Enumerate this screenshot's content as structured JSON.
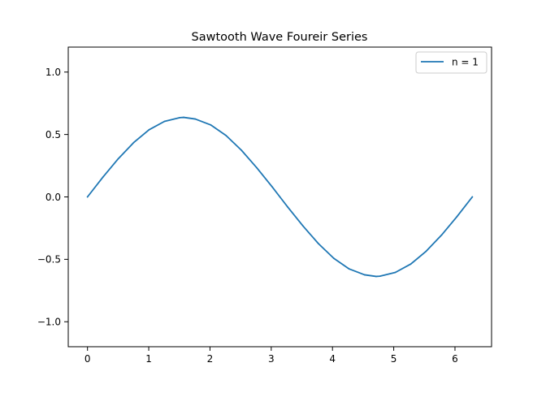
{
  "chart_data": {
    "type": "line",
    "title": "Sawtooth Wave Foureir Series",
    "xlabel": "",
    "ylabel": "",
    "xlim": [
      -0.3142,
      6.5973
    ],
    "ylim": [
      -1.2,
      1.2
    ],
    "xticks": [
      0,
      1,
      2,
      3,
      4,
      5,
      6
    ],
    "xtick_labels": [
      "0",
      "1",
      "2",
      "3",
      "4",
      "5",
      "6"
    ],
    "yticks": [
      -1.0,
      -0.5,
      0.0,
      0.5,
      1.0
    ],
    "ytick_labels": [
      "−1.0",
      "−0.5",
      "0.0",
      "0.5",
      "1.0"
    ],
    "grid": false,
    "legend_position": "top-right",
    "series": [
      {
        "name": "n = 1",
        "color": "#1f77b4",
        "x": [
          0,
          0.2513,
          0.5027,
          0.754,
          1.0053,
          1.2566,
          1.508,
          1.5708,
          1.7593,
          2.0106,
          2.2619,
          2.5133,
          2.7646,
          3.0159,
          3.1416,
          3.2673,
          3.5186,
          3.7699,
          4.0212,
          4.2726,
          4.5239,
          4.7124,
          4.7752,
          5.0265,
          5.2779,
          5.5292,
          5.7805,
          6.0319,
          6.2832
        ],
        "y": [
          0,
          0.158,
          0.306,
          0.435,
          0.538,
          0.605,
          0.635,
          0.637,
          0.624,
          0.577,
          0.492,
          0.374,
          0.233,
          0.08,
          0,
          -0.08,
          -0.233,
          -0.374,
          -0.492,
          -0.577,
          -0.624,
          -0.637,
          -0.635,
          -0.605,
          -0.538,
          -0.435,
          -0.306,
          -0.158,
          0
        ]
      }
    ]
  }
}
